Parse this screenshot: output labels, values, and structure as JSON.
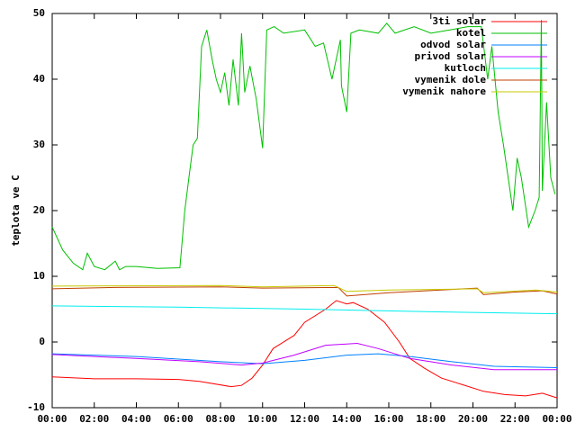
{
  "chart_data": {
    "type": "line",
    "ylabel": "teplota ve C",
    "xlim": [
      0,
      24
    ],
    "xticks": [
      {
        "value": 0,
        "label": "00:00"
      },
      {
        "value": 2,
        "label": "02:00"
      },
      {
        "value": 4,
        "label": "04:00"
      },
      {
        "value": 6,
        "label": "06:00"
      },
      {
        "value": 8,
        "label": "08:00"
      },
      {
        "value": 10,
        "label": "10:00"
      },
      {
        "value": 12,
        "label": "12:00"
      },
      {
        "value": 14,
        "label": "14:00"
      },
      {
        "value": 16,
        "label": "16:00"
      },
      {
        "value": 18,
        "label": "18:00"
      },
      {
        "value": 20,
        "label": "20:00"
      },
      {
        "value": 22,
        "label": "22:00"
      },
      {
        "value": 24,
        "label": "00:00"
      }
    ],
    "ylim": [
      -10,
      50
    ],
    "yticks": [
      -10,
      0,
      10,
      20,
      30,
      40,
      50
    ],
    "legend": "top-right",
    "series": [
      {
        "name": "3ti solar",
        "color": "#ff0000",
        "x": [
          0,
          2,
          4,
          6,
          7,
          8.5,
          9,
          9.5,
          10,
          10.5,
          11.5,
          12,
          13,
          13.5,
          14,
          14.3,
          15,
          15.8,
          16.5,
          17,
          17.7,
          18.5,
          19.5,
          20.5,
          21.5,
          22.5,
          23.3,
          24
        ],
        "values": [
          -5.3,
          -5.6,
          -5.6,
          -5.7,
          -6,
          -6.8,
          -6.6,
          -5.5,
          -3.5,
          -1,
          1,
          3,
          5,
          6.3,
          5.8,
          6,
          5,
          3,
          0,
          -2.5,
          -4,
          -5.5,
          -6.5,
          -7.5,
          -8,
          -8.2,
          -7.8,
          -8.5
        ]
      },
      {
        "name": "kotel",
        "color": "#00c000",
        "x": [
          0,
          0.5,
          1,
          1.45,
          1.67,
          2,
          2.5,
          3,
          3.2,
          3.5,
          4,
          5,
          6.07,
          6.3,
          6.5,
          6.7,
          6.9,
          7.1,
          7.35,
          7.6,
          7.8,
          8,
          8.2,
          8.4,
          8.6,
          8.85,
          9,
          9.15,
          9.4,
          9.7,
          10,
          10.2,
          10.55,
          11,
          12,
          12.5,
          12.9,
          13.3,
          13.7,
          13.75,
          14,
          14.2,
          14.6,
          15.5,
          15.9,
          16.3,
          17.2,
          18,
          18.9,
          19.75,
          20.4,
          20.7,
          20.9,
          21.2,
          21.45,
          21.9,
          22.1,
          22.3,
          22.65,
          22.95,
          23.15,
          23.25,
          23.3,
          23.5,
          23.7,
          23.9
        ],
        "values": [
          17.5,
          14,
          12,
          11,
          13.5,
          11.5,
          11,
          12.3,
          11,
          11.5,
          11.5,
          11.2,
          11.3,
          20,
          25,
          30,
          31,
          45,
          47.5,
          43,
          40,
          38,
          41,
          36,
          43,
          36,
          47,
          38,
          42,
          37,
          29.5,
          47.5,
          48,
          47,
          47.5,
          45,
          45.5,
          40,
          46,
          39,
          35,
          47,
          47.5,
          47,
          48.5,
          47,
          48,
          47,
          47.5,
          48,
          48,
          40,
          45,
          35,
          30,
          20,
          28,
          25,
          17.5,
          20,
          22,
          49,
          23,
          36.5,
          25,
          22.5
        ]
      },
      {
        "name": "odvod solar",
        "color": "#0080ff",
        "x": [
          0,
          4,
          8,
          10,
          12,
          14,
          15.5,
          17,
          19,
          21,
          24
        ],
        "values": [
          -1.8,
          -2.2,
          -3,
          -3.3,
          -2.8,
          -2,
          -1.8,
          -2.2,
          -3,
          -3.7,
          -3.9
        ]
      },
      {
        "name": "privod solar",
        "color": "#c000ff",
        "x": [
          0,
          4,
          7,
          9,
          10,
          11.5,
          13,
          14.5,
          15.5,
          17,
          19,
          21,
          24
        ],
        "values": [
          -1.9,
          -2.5,
          -3,
          -3.5,
          -3.2,
          -2,
          -0.5,
          -0.2,
          -1,
          -2.5,
          -3.5,
          -4.2,
          -4.2
        ]
      },
      {
        "name": "kutloch",
        "color": "#00eeee",
        "x": [
          0,
          6,
          12,
          18,
          24
        ],
        "values": [
          5.5,
          5.3,
          5,
          4.6,
          4.3
        ]
      },
      {
        "name": "vymenik dole",
        "color": "#c04000",
        "x": [
          0,
          3,
          8,
          10,
          13.6,
          14,
          16,
          19,
          20.2,
          20.5,
          22,
          23.3,
          24
        ],
        "values": [
          8.1,
          8.3,
          8.4,
          8.2,
          8.3,
          7,
          7.5,
          8,
          8.2,
          7.2,
          7.6,
          7.8,
          7.3
        ]
      },
      {
        "name": "vymenik nahore",
        "color": "#c8c800",
        "x": [
          0,
          8,
          10,
          13.4,
          14,
          16,
          20.2,
          20.5,
          23,
          24
        ],
        "values": [
          8.5,
          8.6,
          8.4,
          8.6,
          7.7,
          7.9,
          8.1,
          7.5,
          7.9,
          7.6
        ]
      }
    ]
  }
}
